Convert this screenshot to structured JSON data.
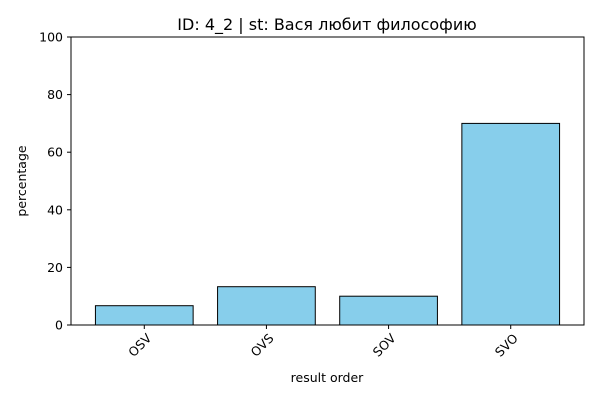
{
  "chart_data": {
    "type": "bar",
    "title": "ID: 4_2 | st: Вася любит философию",
    "xlabel": "result order",
    "ylabel": "percentage",
    "categories": [
      "OSV",
      "OVS",
      "SOV",
      "SVO"
    ],
    "values": [
      6.7,
      13.3,
      10.0,
      70.0
    ],
    "ylim": [
      0,
      100
    ],
    "yticks": [
      0,
      20,
      40,
      60,
      80,
      100
    ],
    "grid": false,
    "legend": "none",
    "bar_color": "#87CEEB",
    "bar_edge_color": "#000000",
    "x_tick_rotation_deg": 45
  }
}
